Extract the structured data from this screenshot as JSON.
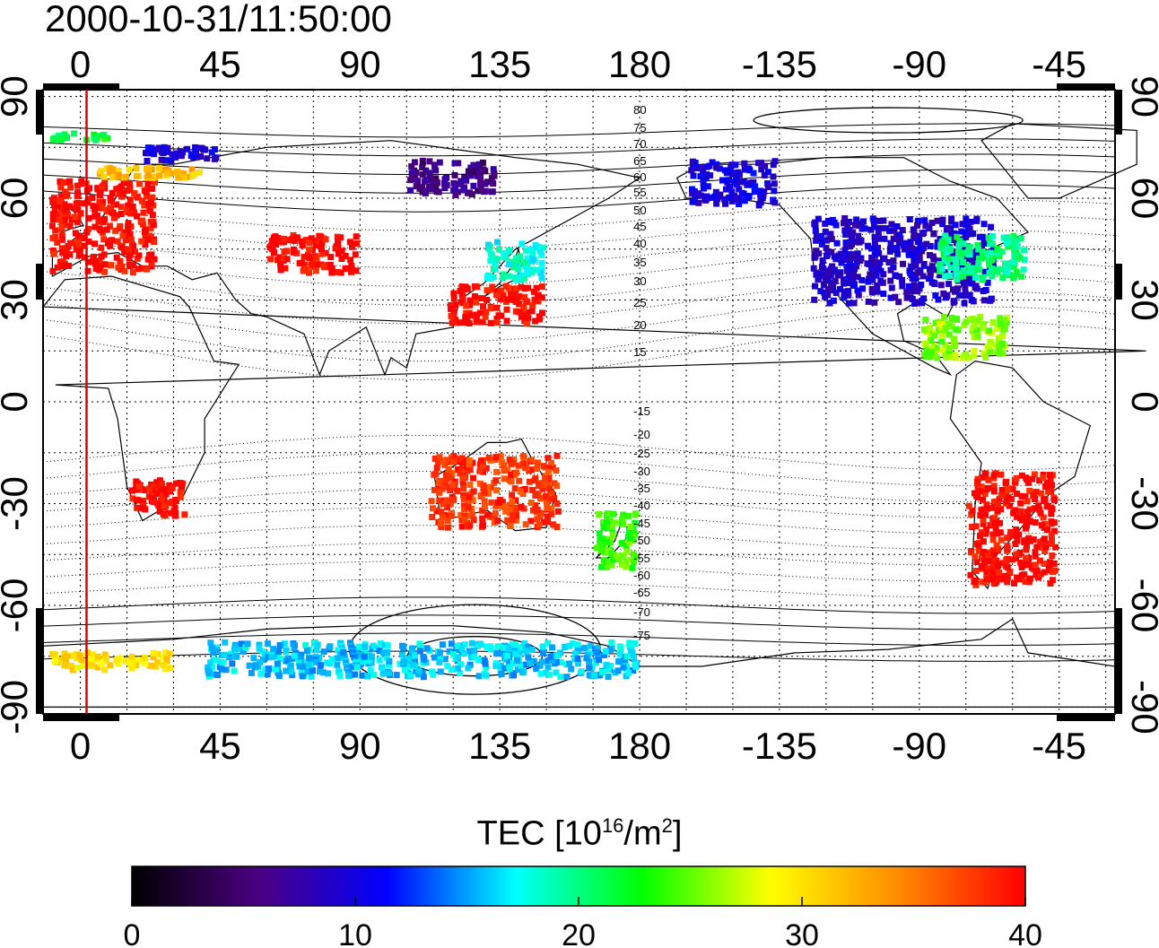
{
  "title": "2000-10-31/11:50:00",
  "map": {
    "lon_ticks": [
      "0",
      "45",
      "90",
      "135",
      "180",
      "-135",
      "-90",
      "-45"
    ],
    "lat_ticks": [
      "90",
      "60",
      "30",
      "0",
      "-30",
      "-60",
      "-90"
    ],
    "lon_range": [
      -12,
      333
    ],
    "lat_range": [
      -92,
      92
    ],
    "grid": true,
    "grid_step_deg": 15,
    "coastlines": true,
    "marker_line": {
      "lon": 2,
      "color": "#dd0000"
    },
    "contour_labels": [
      "80",
      "75",
      "70",
      "65",
      "60",
      "55",
      "50",
      "45",
      "40",
      "35",
      "30",
      "25",
      "20",
      "15",
      "-15",
      "-20",
      "-25",
      "-30",
      "-35",
      "-40",
      "-45",
      "-50",
      "-55",
      "-60",
      "-65",
      "-70",
      "-75"
    ]
  },
  "colorbar": {
    "label_prefix": "TEC  [10",
    "label_exp": "16",
    "label_mid": "/m",
    "label_exp2": "2",
    "label_suffix": "]",
    "ticks": [
      "0",
      "10",
      "20",
      "30",
      "40"
    ],
    "range": [
      0,
      40
    ],
    "colors": [
      "#000000",
      "#4b0082",
      "#0000ff",
      "#00ffff",
      "#00ff00",
      "#ffff00",
      "#ff8c00",
      "#ff0000"
    ]
  },
  "chart_data": {
    "type": "heatmap",
    "title": "2000-10-31/11:50:00",
    "xlabel": "",
    "ylabel": "",
    "value_label": "TEC [10^16/m^2]",
    "cells": [
      {
        "lon_min": -10,
        "lon_max": 25,
        "lat_min": 37,
        "lat_max": 66,
        "value": 40
      },
      {
        "lon_min": 5,
        "lon_max": 40,
        "lat_min": 65,
        "lat_max": 70,
        "value": 32
      },
      {
        "lon_min": -10,
        "lon_max": 10,
        "lat_min": 76,
        "lat_max": 80,
        "value": 22
      },
      {
        "lon_min": 20,
        "lon_max": 45,
        "lat_min": 70,
        "lat_max": 76,
        "value": 10
      },
      {
        "lon_min": 60,
        "lon_max": 90,
        "lat_min": 37,
        "lat_max": 50,
        "value": 40
      },
      {
        "lon_min": 118,
        "lon_max": 150,
        "lat_min": 22,
        "lat_max": 35,
        "value": 40
      },
      {
        "lon_min": 130,
        "lon_max": 150,
        "lat_min": 35,
        "lat_max": 48,
        "value": 18
      },
      {
        "lon_min": 105,
        "lon_max": 135,
        "lat_min": 60,
        "lat_max": 72,
        "value": 6
      },
      {
        "lon_min": 195,
        "lon_max": 225,
        "lat_min": 57,
        "lat_max": 72,
        "value": 10
      },
      {
        "lon_min": 235,
        "lon_max": 295,
        "lat_min": 28,
        "lat_max": 55,
        "value": 9
      },
      {
        "lon_min": 275,
        "lon_max": 305,
        "lat_min": 35,
        "lat_max": 50,
        "value": 20
      },
      {
        "lon_min": 270,
        "lon_max": 300,
        "lat_min": 12,
        "lat_max": 26,
        "value": 26
      },
      {
        "lon_min": 15,
        "lon_max": 35,
        "lat_min": -35,
        "lat_max": -22,
        "value": 40
      },
      {
        "lon_min": 112,
        "lon_max": 155,
        "lat_min": -38,
        "lat_max": -15,
        "value": 38
      },
      {
        "lon_min": 165,
        "lon_max": 180,
        "lat_min": -50,
        "lat_max": -32,
        "value": 24
      },
      {
        "lon_min": 285,
        "lon_max": 315,
        "lat_min": -55,
        "lat_max": -20,
        "value": 40
      },
      {
        "lon_min": -10,
        "lon_max": 30,
        "lat_min": -80,
        "lat_max": -73,
        "value": 30
      },
      {
        "lon_min": 40,
        "lon_max": 180,
        "lat_min": -82,
        "lat_max": -70,
        "value": 16
      }
    ]
  }
}
